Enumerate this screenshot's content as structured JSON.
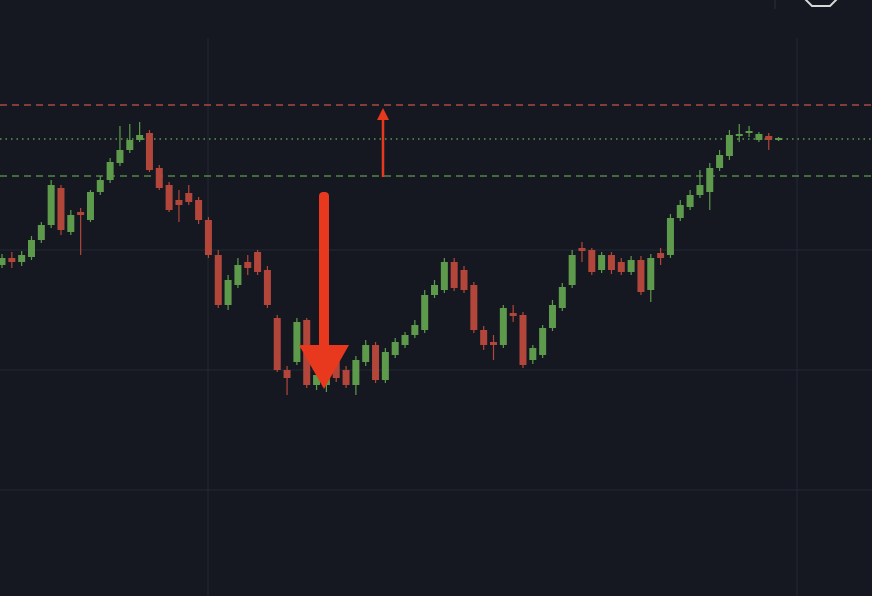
{
  "chart_data": {
    "type": "candlestick",
    "up_color": "#5d9a4b",
    "down_color": "#b2463a",
    "ylim": [
      0,
      596
    ],
    "yticks": [
      106,
      226,
      346
    ],
    "grid": true,
    "levels": [
      {
        "value": 491,
        "color": "#c9524a",
        "style": "dash"
      },
      {
        "value": 457,
        "color": "#5d9a4b",
        "style": "dot"
      },
      {
        "value": 420,
        "color": "#5d9a4b",
        "style": "dash"
      }
    ],
    "open": [
      331,
      338,
      334,
      339,
      356,
      371,
      408,
      364,
      384,
      376,
      404,
      416,
      433,
      446,
      456,
      463,
      428,
      411,
      396,
      403,
      396,
      376,
      341,
      291,
      311,
      334,
      344,
      326,
      278,
      226,
      234,
      276,
      211,
      211,
      236,
      226,
      211,
      234,
      251,
      216,
      241,
      251,
      261,
      266,
      301,
      306,
      334,
      326,
      311,
      266,
      254,
      251,
      283,
      281,
      236,
      241,
      268,
      288,
      311,
      348,
      346,
      326,
      341,
      334,
      324,
      336,
      306,
      343,
      341,
      378,
      389,
      401,
      404,
      428,
      440,
      460,
      463,
      456,
      460,
      456
    ],
    "high": [
      342,
      344,
      345,
      360,
      374,
      416,
      411,
      386,
      388,
      406,
      420,
      438,
      470,
      472,
      474,
      466,
      431,
      414,
      406,
      411,
      399,
      379,
      346,
      321,
      338,
      341,
      346,
      330,
      281,
      230,
      278,
      278,
      226,
      224,
      241,
      230,
      240,
      256,
      254,
      248,
      258,
      264,
      276,
      306,
      316,
      338,
      338,
      330,
      314,
      270,
      261,
      291,
      291,
      284,
      251,
      271,
      296,
      313,
      346,
      354,
      348,
      344,
      344,
      338,
      340,
      340,
      342,
      348,
      382,
      396,
      406,
      426,
      433,
      446,
      466,
      472,
      470,
      464,
      463,
      459
    ],
    "low": [
      328,
      328,
      330,
      336,
      353,
      368,
      361,
      361,
      341,
      374,
      401,
      413,
      430,
      443,
      454,
      424,
      406,
      384,
      374,
      391,
      372,
      338,
      288,
      286,
      308,
      321,
      321,
      288,
      224,
      201,
      231,
      208,
      206,
      204,
      214,
      208,
      201,
      230,
      213,
      213,
      238,
      248,
      258,
      263,
      298,
      303,
      305,
      303,
      263,
      246,
      236,
      248,
      274,
      228,
      232,
      238,
      265,
      285,
      308,
      334,
      321,
      323,
      322,
      321,
      321,
      301,
      294,
      331,
      338,
      375,
      386,
      398,
      386,
      425,
      436,
      454,
      459,
      454,
      446,
      455
    ],
    "close": [
      338,
      334,
      341,
      356,
      371,
      411,
      366,
      381,
      381,
      404,
      416,
      434,
      446,
      456,
      461,
      426,
      408,
      386,
      391,
      394,
      376,
      341,
      291,
      316,
      331,
      328,
      324,
      291,
      226,
      218,
      274,
      211,
      221,
      218,
      218,
      211,
      236,
      251,
      216,
      244,
      254,
      261,
      271,
      301,
      311,
      334,
      308,
      306,
      266,
      251,
      251,
      288,
      280,
      231,
      248,
      268,
      291,
      309,
      341,
      345,
      324,
      341,
      326,
      324,
      336,
      304,
      338,
      338,
      378,
      391,
      401,
      411,
      428,
      441,
      461,
      462,
      465,
      462,
      456,
      458
    ]
  }
}
